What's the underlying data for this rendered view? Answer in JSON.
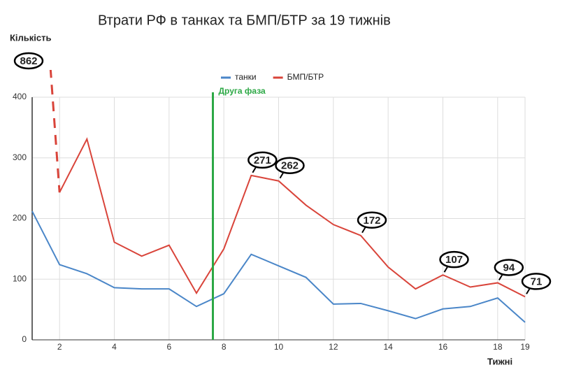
{
  "chart_data": {
    "type": "line",
    "title": "Втрати РФ в танках та БМП/БТР за 19 тижнів",
    "ylabel": "Кількість",
    "xlabel": "Тижні",
    "x": [
      1,
      2,
      3,
      4,
      5,
      6,
      7,
      8,
      9,
      10,
      11,
      12,
      13,
      14,
      15,
      16,
      17,
      18,
      19
    ],
    "series": [
      {
        "name": "танки",
        "color": "#4a86c8",
        "values": [
          212,
          124,
          109,
          86,
          84,
          84,
          55,
          76,
          141,
          122,
          103,
          59,
          60,
          48,
          35,
          51,
          55,
          69,
          29
        ]
      },
      {
        "name": "БМП/БТР",
        "color": "#d9443a",
        "values": [
          862,
          243,
          331,
          161,
          138,
          156,
          77,
          150,
          271,
          262,
          222,
          190,
          172,
          120,
          84,
          107,
          87,
          94,
          71
        ],
        "value_labels": [
          "862",
          null,
          null,
          null,
          null,
          null,
          null,
          null,
          "271",
          "262",
          null,
          null,
          "172",
          null,
          null,
          "107",
          null,
          "94",
          "71"
        ]
      }
    ],
    "xlim": [
      1,
      19
    ],
    "ylim": [
      0,
      400
    ],
    "xticks": [
      2,
      4,
      6,
      8,
      10,
      12,
      14,
      16,
      18,
      19
    ],
    "yticks": [
      0,
      100,
      200,
      300,
      400
    ],
    "grid": true,
    "legend": "top",
    "phase_line": {
      "x": 7.6,
      "label": "Друга фаза",
      "color": "#2ca845"
    }
  }
}
